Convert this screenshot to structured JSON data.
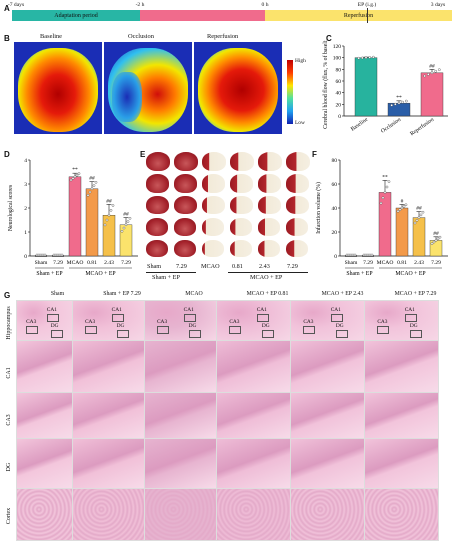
{
  "panels": {
    "A": "A",
    "B": "B",
    "C": "C",
    "D": "D",
    "E": "E",
    "F": "F",
    "G": "G"
  },
  "timeline": {
    "ticks": [
      "-7 days",
      "-2 h",
      "0 h",
      "EP (i.g.)",
      "3 days"
    ],
    "segments": [
      "Adaptation period",
      "",
      "Reperfusion"
    ],
    "colors": {
      "adaptation": "#28b6a5",
      "occlusion": "#f06b8c",
      "reperfusion": "#fbe36c"
    }
  },
  "panelB": {
    "titles": [
      "Baseline",
      "Occlusion",
      "Reperfusion"
    ],
    "colorbar": {
      "high": "High",
      "low": "Low"
    }
  },
  "chartC": {
    "type": "bar",
    "categories": [
      "Baseline",
      "Occlusion",
      "Reperfusion"
    ],
    "values": [
      100,
      22,
      74
    ],
    "errors": [
      1,
      4,
      6
    ],
    "colors": [
      "#27b39e",
      "#2a5ea8",
      "#f06b8c"
    ],
    "significance": [
      "",
      "**",
      "##"
    ],
    "ylabel": "Cerebral blood flow (flux, % of baseline)",
    "ylim": [
      0,
      120
    ],
    "yticks": [
      "0",
      "20",
      "40",
      "60",
      "80",
      "100",
      "120"
    ]
  },
  "chartD": {
    "type": "bar",
    "categories": [
      "Sham",
      "7.29",
      "MCAO",
      "0.81",
      "2.43",
      "7.29"
    ],
    "values": [
      0,
      0,
      3.3,
      2.8,
      1.7,
      1.3
    ],
    "errors": [
      0,
      0,
      0.15,
      0.3,
      0.45,
      0.3
    ],
    "colors": [
      "#3a3a3a",
      "#3a3a3a",
      "#f06b8c",
      "#f39a4a",
      "#f5c04a",
      "#fbe36c"
    ],
    "significance": [
      "",
      "",
      "**",
      "##",
      "##",
      "##"
    ],
    "ylabel": "Neurological scores",
    "ylim": [
      0,
      4
    ],
    "yticks": [
      "0",
      "1",
      "2",
      "3",
      "4"
    ],
    "groups": [
      "Sham + EP",
      "MCAO + EP"
    ]
  },
  "panelE": {
    "labels": [
      "Sham",
      "7.29",
      "MCAO",
      "0.81",
      "2.43",
      "7.29"
    ],
    "groups": [
      "Sham + EP",
      "MCAO + EP"
    ],
    "infarct": [
      0,
      0,
      0.7,
      0.55,
      0.4,
      0.25
    ]
  },
  "chartF": {
    "type": "bar",
    "categories": [
      "Sham",
      "7.29",
      "MCAO",
      "0.81",
      "2.43",
      "7.29"
    ],
    "values": [
      0,
      0,
      53,
      40,
      32,
      13
    ],
    "errors": [
      0,
      0,
      10,
      3,
      5,
      3
    ],
    "colors": [
      "#3a3a3a",
      "#3a3a3a",
      "#f06b8c",
      "#f39a4a",
      "#f5c04a",
      "#fbe36c"
    ],
    "significance": [
      "",
      "",
      "**",
      "#",
      "##",
      "##"
    ],
    "ylabel": "Infarction volume (%)",
    "ylim": [
      0,
      80
    ],
    "yticks": [
      "0",
      "20",
      "40",
      "60",
      "80"
    ],
    "groups": [
      "Sham + EP",
      "MCAO + EP"
    ]
  },
  "panelG": {
    "columns": [
      "Sham",
      "Sham + EP 7.29",
      "MCAO",
      "MCAO + EP 0.81",
      "MCAO + EP 2.43",
      "MCAO + EP 7.29"
    ],
    "rows": [
      "Hippocampus",
      "CA1",
      "CA3",
      "DG",
      "Cortex"
    ],
    "roi": {
      "ca1": "CA1",
      "ca3": "CA3",
      "dg": "DG"
    }
  }
}
